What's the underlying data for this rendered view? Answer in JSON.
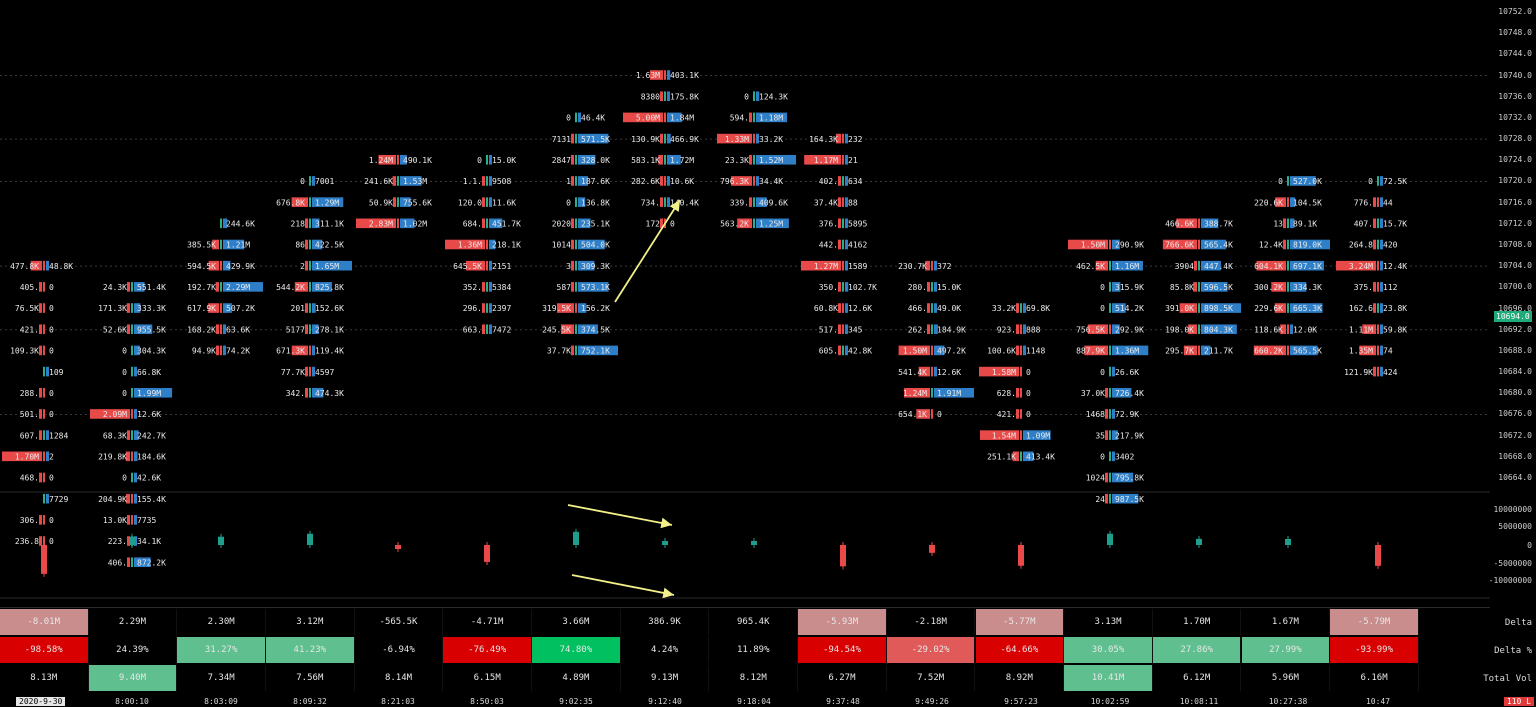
{
  "price_axis": {
    "ticks": [
      "10752.0",
      "10748.0",
      "10744.0",
      "10740.0",
      "10736.0",
      "10732.0",
      "10728.0",
      "10724.0",
      "10720.0",
      "10716.0",
      "10712.0",
      "10708.0",
      "10704.0",
      "10700.0",
      "10696.0",
      "10692.0",
      "10688.0",
      "10684.0",
      "10680.0",
      "10676.0",
      "10672.0",
      "10668.0",
      "10664.0"
    ],
    "last_price": "10694.0"
  },
  "delta_axis": {
    "ticks": [
      "10000000",
      "5000000",
      "0",
      "-5000000",
      "-10000000"
    ]
  },
  "time_axis": {
    "date": "2020-9-30",
    "ticks": [
      "8:00:10",
      "8:03:09",
      "8:09:32",
      "8:21:03",
      "8:50:03",
      "9:02:35",
      "9:12:40",
      "9:18:04",
      "9:37:48",
      "9:49:26",
      "9:57:23",
      "10:02:59",
      "10:08:11",
      "10:27:38",
      "10:47"
    ]
  },
  "corner_badge": "110 L",
  "stats": {
    "labels": [
      "Delta",
      "Delta %",
      "Total Vol"
    ],
    "delta": [
      "-8.01M",
      "2.29M",
      "2.30M",
      "3.12M",
      "-565.5K",
      "-4.71M",
      "3.66M",
      "386.9K",
      "965.4K",
      "-5.93M",
      "-2.18M",
      "-5.77M",
      "3.13M",
      "1.70M",
      "1.67M",
      "-5.79M"
    ],
    "delta_pct": [
      "-98.58%",
      "24.39%",
      "31.27%",
      "41.23%",
      "-6.94%",
      "-76.49%",
      "74.80%",
      "4.24%",
      "11.89%",
      "-94.54%",
      "-29.02%",
      "-64.66%",
      "30.05%",
      "27.86%",
      "27.99%",
      "-93.99%"
    ],
    "total_vol": [
      "8.13M",
      "9.40M",
      "7.34M",
      "7.56M",
      "8.14M",
      "6.15M",
      "4.89M",
      "9.13M",
      "8.12M",
      "6.27M",
      "7.52M",
      "8.92M",
      "10.41M",
      "6.12M",
      "5.96M",
      "6.16M"
    ]
  },
  "colors": {
    "background": "#000000",
    "bid": "#e84a4a",
    "ask": "#2f7fc8",
    "positive": "#5fbf8f",
    "negative": "#c98d8d",
    "strong_negative": "#d80000",
    "annotation_arrow": "#f3f08a",
    "poc_box": "#f39c5a"
  },
  "chart_data": {
    "type": "footprint",
    "title": "",
    "price_range": [
      10662,
      10754
    ],
    "tick_size": 4,
    "columns": [
      {
        "time": "8:00:10",
        "rows": [
          {
            "p": 10704,
            "bid": "477.8K",
            "ask": "48.8K"
          },
          {
            "p": 10700,
            "bid": "405.",
            "ask": "0"
          },
          {
            "p": 10696,
            "bid": "76.5K",
            "ask": "0"
          },
          {
            "p": 10692,
            "bid": "421.",
            "ask": "0"
          },
          {
            "p": 10688,
            "bid": "109.3K",
            "ask": "0"
          },
          {
            "p": 10684,
            "bid": "",
            "ask": "109"
          },
          {
            "p": 10680,
            "bid": "288.",
            "ask": "0"
          },
          {
            "p": 10676,
            "bid": "501.",
            "ask": "0"
          },
          {
            "p": 10672,
            "bid": "607.",
            "ask": "1284"
          },
          {
            "p": 10668,
            "bid": "1.70M",
            "ask": "2"
          },
          {
            "p": 10664,
            "bid": "468.",
            "ask": "0"
          },
          {
            "p": 10660,
            "bid": "",
            "ask": "7729"
          },
          {
            "p": 10656,
            "bid": "306.",
            "ask": "0"
          },
          {
            "p": 10652,
            "bid": "236.8",
            "ask": "0"
          }
        ]
      },
      {
        "time": "8:03:09",
        "rows": [
          {
            "p": 10700,
            "bid": "24.3K",
            "ask": "551.4K"
          },
          {
            "p": 10696,
            "bid": "171.3K",
            "ask": "333.3K"
          },
          {
            "p": 10692,
            "bid": "52.6K",
            "ask": "955.5K"
          },
          {
            "p": 10688,
            "bid": "0",
            "ask": "304.3K"
          },
          {
            "p": 10684,
            "bid": "0",
            "ask": "66.8K"
          },
          {
            "p": 10680,
            "bid": "0",
            "ask": "1.99M"
          },
          {
            "p": 10676,
            "bid": "2.09M",
            "ask": "12.6K"
          },
          {
            "p": 10672,
            "bid": "68.3K",
            "ask": "242.7K"
          },
          {
            "p": 10668,
            "bid": "219.8K",
            "ask": "184.6K"
          },
          {
            "p": 10664,
            "bid": "0",
            "ask": "42.6K"
          },
          {
            "p": 10660,
            "bid": "204.9K",
            "ask": "155.4K"
          },
          {
            "p": 10656,
            "bid": "13.0K",
            "ask": "7735"
          },
          {
            "p": 10652,
            "bid": "223.",
            "ask": "34.1K"
          },
          {
            "p": 10648,
            "bid": "406.",
            "ask": "872.2K"
          }
        ]
      },
      {
        "time": "8:09:32",
        "rows": [
          {
            "p": 10712,
            "bid": "",
            "ask": "244.6K"
          },
          {
            "p": 10708,
            "bid": "385.5K",
            "ask": "1.21M"
          },
          {
            "p": 10704,
            "bid": "594.5K",
            "ask": "429.9K"
          },
          {
            "p": 10700,
            "bid": "192.7K",
            "ask": "2.29M"
          },
          {
            "p": 10696,
            "bid": "617.9K",
            "ask": "507.2K"
          },
          {
            "p": 10692,
            "bid": "168.2K",
            "ask": "63.6K"
          },
          {
            "p": 10688,
            "bid": "94.9K",
            "ask": "74.2K"
          }
        ]
      },
      {
        "time": "8:21:03",
        "rows": [
          {
            "p": 10720,
            "bid": "0",
            "ask": "7001"
          },
          {
            "p": 10716,
            "bid": "676.8K",
            "ask": "1.29M"
          },
          {
            "p": 10712,
            "bid": "218",
            "ask": "311.1K"
          },
          {
            "p": 10708,
            "bid": "86",
            "ask": "422.5K"
          },
          {
            "p": 10704,
            "bid": "2",
            "ask": "1.65M"
          },
          {
            "p": 10700,
            "bid": "544.2K",
            "ask": "825.8K"
          },
          {
            "p": 10696,
            "bid": "201",
            "ask": "152.6K"
          },
          {
            "p": 10692,
            "bid": "5177",
            "ask": "278.1K"
          },
          {
            "p": 10688,
            "bid": "671.3K",
            "ask": "119.4K"
          },
          {
            "p": 10684,
            "bid": "77.7K",
            "ask": "4597"
          },
          {
            "p": 10680,
            "bid": "342.",
            "ask": "474.3K"
          }
        ]
      },
      {
        "time": "8:50:03",
        "rows": [
          {
            "p": 10724,
            "bid": "1.24M",
            "ask": "490.1K"
          },
          {
            "p": 10720,
            "bid": "241.6K",
            "ask": "1.53M"
          },
          {
            "p": 10716,
            "bid": "50.9K",
            "ask": "755.6K"
          },
          {
            "p": 10712,
            "bid": "2.83M",
            "ask": "1.02M"
          }
        ]
      },
      {
        "time": "9:02:35",
        "rows": [
          {
            "p": 10724,
            "bid": "0",
            "ask": "15.0K"
          },
          {
            "p": 10720,
            "bid": "1.1.",
            "ask": "9508"
          },
          {
            "p": 10716,
            "bid": "120.0",
            "ask": "11.6K"
          },
          {
            "p": 10712,
            "bid": "684.",
            "ask": "451.7K"
          },
          {
            "p": 10708,
            "bid": "1.36M",
            "ask": "218.1K"
          },
          {
            "p": 10704,
            "bid": "645.5K",
            "ask": "2151"
          },
          {
            "p": 10700,
            "bid": "352.",
            "ask": "5384"
          },
          {
            "p": 10696,
            "bid": "296.",
            "ask": "2397"
          },
          {
            "p": 10692,
            "bid": "663.",
            "ask": "7472"
          }
        ]
      },
      {
        "time": "9:12:40",
        "rows": [
          {
            "p": 10732,
            "bid": "0",
            "ask": "46.4K"
          },
          {
            "p": 10728,
            "bid": "7131",
            "ask": "571.5K"
          },
          {
            "p": 10724,
            "bid": "2847",
            "ask": "328.0K"
          },
          {
            "p": 10720,
            "bid": "1",
            "ask": "187.6K"
          },
          {
            "p": 10716,
            "bid": "0",
            "ask": "136.8K"
          },
          {
            "p": 10712,
            "bid": "2020",
            "ask": "235.1K"
          },
          {
            "p": 10708,
            "bid": "1014",
            "ask": "504.0K"
          },
          {
            "p": 10704,
            "bid": "3",
            "ask": "309.3K"
          },
          {
            "p": 10700,
            "bid": "587",
            "ask": "573.1K"
          },
          {
            "p": 10696,
            "bid": "319.5K",
            "ask": "156.2K"
          },
          {
            "p": 10692,
            "bid": "245.5K",
            "ask": "374.5K"
          },
          {
            "p": 10688,
            "bid": "37.7K",
            "ask": "752.1K"
          }
        ]
      },
      {
        "time": "9:18:04",
        "rows": [
          {
            "p": 10740,
            "bid": "1.63M",
            "ask": "403.1K"
          },
          {
            "p": 10736,
            "bid": "8380",
            "ask": "175.8K"
          },
          {
            "p": 10732,
            "bid": "5.00M",
            "ask": "1.84M"
          },
          {
            "p": 10728,
            "bid": "130.9K",
            "ask": "466.9K"
          },
          {
            "p": 10724,
            "bid": "583.1K",
            "ask": "1.72M"
          },
          {
            "p": 10720,
            "bid": "282.6K",
            "ask": "10.6K"
          },
          {
            "p": 10716,
            "bid": "734.",
            "ask": "140.4K"
          },
          {
            "p": 10712,
            "bid": "172",
            "ask": "0"
          }
        ]
      },
      {
        "time": "9:37:48",
        "rows": [
          {
            "p": 10736,
            "bid": "0",
            "ask": "124.3K"
          },
          {
            "p": 10732,
            "bid": "594.",
            "ask": "1.18M"
          },
          {
            "p": 10728,
            "bid": "1.33M",
            "ask": "33.2K"
          },
          {
            "p": 10724,
            "bid": "23.3K",
            "ask": "1.52M"
          },
          {
            "p": 10720,
            "bid": "796.3K",
            "ask": "34.4K"
          },
          {
            "p": 10716,
            "bid": "339.",
            "ask": "409.6K"
          },
          {
            "p": 10712,
            "bid": "563.2K",
            "ask": "1.25M"
          }
        ]
      },
      {
        "time": "9:49:26",
        "rows": [
          {
            "p": 10728,
            "bid": "164.3K",
            "ask": "232"
          },
          {
            "p": 10724,
            "bid": "1.17M",
            "ask": "21"
          },
          {
            "p": 10720,
            "bid": "402.",
            "ask": "634"
          },
          {
            "p": 10716,
            "bid": "37.4K",
            "ask": "88"
          },
          {
            "p": 10712,
            "bid": "376.",
            "ask": "5895"
          },
          {
            "p": 10708,
            "bid": "442.",
            "ask": "4162"
          },
          {
            "p": 10704,
            "bid": "1.27M",
            "ask": "1589"
          },
          {
            "p": 10700,
            "bid": "350.",
            "ask": "102.7K"
          },
          {
            "p": 10696,
            "bid": "60.8K",
            "ask": "12.6K"
          },
          {
            "p": 10692,
            "bid": "517.",
            "ask": "345"
          },
          {
            "p": 10688,
            "bid": "605.",
            "ask": "42.8K"
          }
        ]
      },
      {
        "time": "9:57:23",
        "rows": [
          {
            "p": 10704,
            "bid": "230.7K",
            "ask": "372"
          },
          {
            "p": 10700,
            "bid": "280.",
            "ask": "15.0K"
          },
          {
            "p": 10696,
            "bid": "466.",
            "ask": "49.0K"
          },
          {
            "p": 10692,
            "bid": "262.",
            "ask": "184.9K"
          },
          {
            "p": 10688,
            "bid": "1.50M",
            "ask": "497.2K"
          },
          {
            "p": 10684,
            "bid": "541.4K",
            "ask": "12.6K"
          },
          {
            "p": 10680,
            "bid": "1.24M",
            "ask": "1.91M"
          },
          {
            "p": 10676,
            "bid": "654.1K",
            "ask": "0"
          }
        ]
      },
      {
        "time": "10:02:59",
        "rows": [
          {
            "p": 10696,
            "bid": "33.2K",
            "ask": "69.8K"
          },
          {
            "p": 10692,
            "bid": "923.",
            "ask": "888"
          },
          {
            "p": 10688,
            "bid": "100.6K",
            "ask": "1148"
          },
          {
            "p": 10684,
            "bid": "1.58M",
            "ask": "0"
          },
          {
            "p": 10680,
            "bid": "628.",
            "ask": "0"
          },
          {
            "p": 10676,
            "bid": "421.",
            "ask": "0"
          },
          {
            "p": 10672,
            "bid": "1.54M",
            "ask": "1.09M"
          },
          {
            "p": 10668,
            "bid": "251.1K",
            "ask": "413.4K"
          }
        ]
      },
      {
        "time": "10:08:11",
        "rows": [
          {
            "p": 10708,
            "bid": "1.50M",
            "ask": "290.9K"
          },
          {
            "p": 10704,
            "bid": "462.5K",
            "ask": "1.16M"
          },
          {
            "p": 10700,
            "bid": "0",
            "ask": "315.9K"
          },
          {
            "p": 10696,
            "bid": "0",
            "ask": "514.2K"
          },
          {
            "p": 10692,
            "bid": "756.5K",
            "ask": "292.9K"
          },
          {
            "p": 10688,
            "bid": "887.9K",
            "ask": "1.36M"
          },
          {
            "p": 10684,
            "bid": "0",
            "ask": "26.6K"
          },
          {
            "p": 10680,
            "bid": "37.0K",
            "ask": "726.4K"
          },
          {
            "p": 10676,
            "bid": "1468",
            "ask": "72.9K"
          },
          {
            "p": 10672,
            "bid": "35",
            "ask": "217.9K"
          },
          {
            "p": 10668,
            "bid": "0",
            "ask": "3402"
          },
          {
            "p": 10664,
            "bid": "1024",
            "ask": "795.8K"
          },
          {
            "p": 10660,
            "bid": "24",
            "ask": "987.5K"
          }
        ]
      },
      {
        "time": "10:27:38",
        "rows": [
          {
            "p": 10712,
            "bid": "466.6K",
            "ask": "388.7K"
          },
          {
            "p": 10708,
            "bid": "766.6K",
            "ask": "565.4K"
          },
          {
            "p": 10704,
            "bid": "3904",
            "ask": "447.4K"
          },
          {
            "p": 10700,
            "bid": "85.8K",
            "ask": "596.5K"
          },
          {
            "p": 10696,
            "bid": "391.0K",
            "ask": "898.5K"
          },
          {
            "p": 10692,
            "bid": "198.0K",
            "ask": "804.3K"
          },
          {
            "p": 10688,
            "bid": "295.7K",
            "ask": "211.7K"
          }
        ]
      },
      {
        "time": "10:47",
        "rows": [
          {
            "p": 10720,
            "bid": "0",
            "ask": "527.0K"
          },
          {
            "p": 10716,
            "bid": "220.6K",
            "ask": "104.5K"
          },
          {
            "p": 10712,
            "bid": "13",
            "ask": "89.1K"
          },
          {
            "p": 10708,
            "bid": "12.4K",
            "ask": "819.0K"
          },
          {
            "p": 10704,
            "bid": "604.1K",
            "ask": "697.1K"
          },
          {
            "p": 10700,
            "bid": "300.2K",
            "ask": "334.3K"
          },
          {
            "p": 10696,
            "bid": "229.6K",
            "ask": "665.3K"
          },
          {
            "p": 10692,
            "bid": "118.6K",
            "ask": "12.0K"
          },
          {
            "p": 10688,
            "bid": "660.2K",
            "ask": "565.5K"
          }
        ]
      },
      {
        "time": "",
        "rows": [
          {
            "p": 10720,
            "bid": "0",
            "ask": "72.5K"
          },
          {
            "p": 10716,
            "bid": "776.",
            "ask": "44"
          },
          {
            "p": 10712,
            "bid": "407.",
            "ask": "15.7K"
          },
          {
            "p": 10708,
            "bid": "264.8",
            "ask": "420"
          },
          {
            "p": 10704,
            "bid": "3.24M",
            "ask": "12.4K"
          },
          {
            "p": 10700,
            "bid": "375.",
            "ask": "112"
          },
          {
            "p": 10696,
            "bid": "162.6",
            "ask": "23.8K"
          },
          {
            "p": 10692,
            "bid": "1.11M",
            "ask": "59.8K"
          },
          {
            "p": 10688,
            "bid": "1.35M",
            "ask": "74"
          },
          {
            "p": 10684,
            "bid": "121.9K",
            "ask": "424"
          }
        ]
      }
    ],
    "delta_bars": [
      -8.01,
      2.29,
      2.3,
      3.12,
      -0.57,
      -4.71,
      3.66,
      0.39,
      0.97,
      -5.93,
      -2.18,
      -5.77,
      3.13,
      1.7,
      1.67,
      -5.79
    ]
  }
}
